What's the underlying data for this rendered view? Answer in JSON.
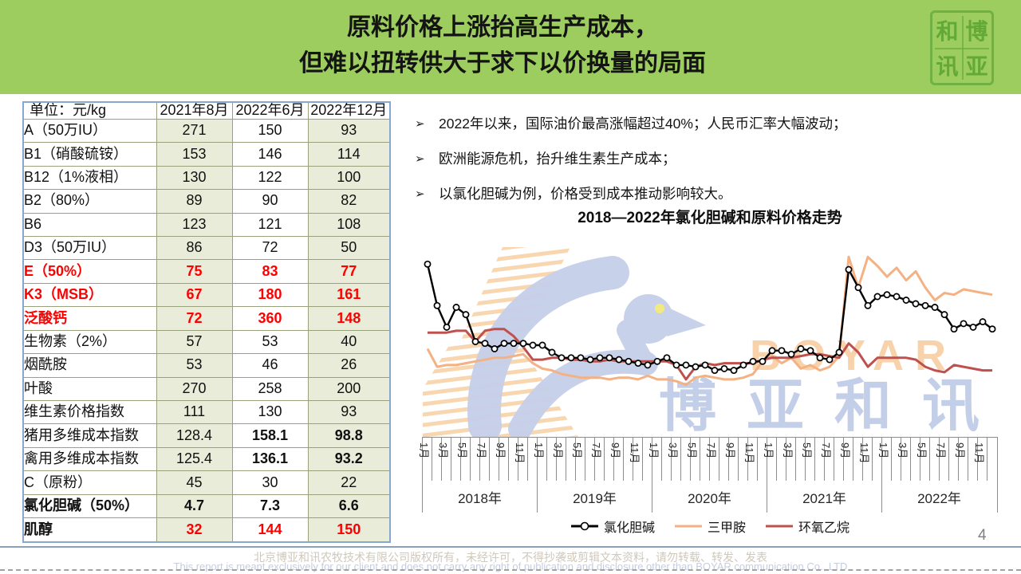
{
  "slide": {
    "title_line1": "原料价格上涨抬高生产成本，",
    "title_line2": "但难以扭转供大于求下以价换量的局面",
    "page_number": "4",
    "logo_chars": [
      "和",
      "博",
      "讯",
      "亚"
    ],
    "footer_cn": "北京博亚和讯农牧技术有限公司版权所有，未经许可，不得抄袭或剪辑文本资料，请勿转载、转发、发表",
    "footer_en": "This report is meant exclusively for our client and does not carry any right of publication and disclosure other than BOYAR communication Co., LTD"
  },
  "bullet_marker": "➢",
  "bullets": [
    "2022年以来，国际油价最高涨幅超过40%；人民币汇率大幅波动；",
    "欧洲能源危机，抬升维生素生产成本；",
    "以氯化胆碱为例，价格受到成本推动影响较大。"
  ],
  "watermark": {
    "brand_en": "BOYAR",
    "brand_cn": "博 亚 和 讯"
  },
  "table": {
    "header": [
      "单位：元/kg",
      "2021年8月",
      "2022年6月",
      "2022年12月"
    ],
    "rows": [
      {
        "label": "A（50万IU）",
        "ls": "",
        "values": [
          "271",
          "150",
          "93"
        ],
        "vs": [
          "",
          "",
          ""
        ]
      },
      {
        "label": "B1（硝酸硫铵）",
        "ls": "",
        "values": [
          "153",
          "146",
          "114"
        ],
        "vs": [
          "",
          "",
          ""
        ]
      },
      {
        "label": "B12（1%液相）",
        "ls": "",
        "values": [
          "130",
          "122",
          "100"
        ],
        "vs": [
          "",
          "",
          ""
        ]
      },
      {
        "label": "B2（80%）",
        "ls": "",
        "values": [
          "89",
          "90",
          "82"
        ],
        "vs": [
          "",
          "",
          ""
        ]
      },
      {
        "label": "B6",
        "ls": "",
        "values": [
          "123",
          "121",
          "108"
        ],
        "vs": [
          "",
          "",
          ""
        ]
      },
      {
        "label": "D3（50万IU）",
        "ls": "",
        "values": [
          "86",
          "72",
          "50"
        ],
        "vs": [
          "",
          "",
          ""
        ]
      },
      {
        "label": "E（50%）",
        "ls": "rb",
        "values": [
          "75",
          "83",
          "77"
        ],
        "vs": [
          "rb",
          "rb",
          "rb"
        ]
      },
      {
        "label": "K3（MSB）",
        "ls": "rb",
        "values": [
          "67",
          "180",
          "161"
        ],
        "vs": [
          "rb",
          "rb",
          "rb"
        ]
      },
      {
        "label": "泛酸钙",
        "ls": "rb",
        "values": [
          "72",
          "360",
          "148"
        ],
        "vs": [
          "rb",
          "rb",
          "rb"
        ]
      },
      {
        "label": "生物素（2%）",
        "ls": "",
        "values": [
          "57",
          "53",
          "40"
        ],
        "vs": [
          "",
          "",
          ""
        ]
      },
      {
        "label": "烟酰胺",
        "ls": "",
        "values": [
          "53",
          "46",
          "26"
        ],
        "vs": [
          "",
          "",
          ""
        ]
      },
      {
        "label": "叶酸",
        "ls": "",
        "values": [
          "270",
          "258",
          "200"
        ],
        "vs": [
          "",
          "",
          ""
        ]
      },
      {
        "label": "维生素价格指数",
        "ls": "",
        "values": [
          "111",
          "130",
          "93"
        ],
        "vs": [
          "",
          "",
          ""
        ]
      },
      {
        "label": "猪用多维成本指数",
        "ls": "",
        "values": [
          "128.4",
          "158.1",
          "98.8"
        ],
        "vs": [
          "",
          "b",
          "b"
        ]
      },
      {
        "label": "禽用多维成本指数",
        "ls": "",
        "values": [
          "125.4",
          "136.1",
          "93.2"
        ],
        "vs": [
          "",
          "b",
          "b"
        ]
      },
      {
        "label": "C（原粉）",
        "ls": "",
        "values": [
          "45",
          "30",
          "22"
        ],
        "vs": [
          "",
          "",
          ""
        ]
      },
      {
        "label": "氯化胆碱（50%）",
        "ls": "b",
        "values": [
          "4.7",
          "7.3",
          "6.6"
        ],
        "vs": [
          "b",
          "b",
          "b"
        ]
      },
      {
        "label": "肌醇",
        "ls": "b",
        "values": [
          "32",
          "144",
          "150"
        ],
        "vs": [
          "rb",
          "rb",
          "rb"
        ]
      }
    ]
  },
  "chart_data": {
    "type": "line",
    "title": "2018—2022年氯化胆碱和原料价格走势",
    "x_range": [
      "2018-01",
      "2022-12"
    ],
    "x_months_per_year": 12,
    "years": [
      "2018年",
      "2019年",
      "2020年",
      "2021年",
      "2022年"
    ],
    "month_tick_labels": [
      "1月",
      "3月",
      "5月",
      "7月",
      "9月",
      "11月"
    ],
    "y_axis_visible": false,
    "y_scale_note": "no y-axis shown; values are estimated relative price index (0-100) read from line heights",
    "legend_position": "bottom",
    "grid": false,
    "series": [
      {
        "name": "氯化胆碱",
        "color": "#000000",
        "marker": "circle",
        "values": [
          95,
          72,
          60,
          71,
          67,
          52,
          51,
          48,
          51,
          51,
          51,
          50,
          50,
          46,
          43,
          43,
          43,
          42,
          43,
          43,
          42,
          41,
          40,
          39,
          41,
          43,
          39,
          39,
          38,
          39,
          36,
          37,
          36,
          39,
          41,
          41,
          47,
          47,
          45,
          48,
          47,
          43,
          42,
          46,
          92,
          82,
          72,
          77,
          78,
          77,
          75,
          73,
          72,
          71,
          67,
          59,
          62,
          60,
          63,
          59
        ]
      },
      {
        "name": "三甲胺",
        "color": "#F4B183",
        "marker": "none",
        "values": [
          48,
          38,
          39,
          39,
          40,
          41,
          42,
          43,
          43,
          44,
          45,
          40,
          37,
          36,
          34,
          33,
          32,
          32,
          32,
          31,
          32,
          32,
          31,
          33,
          31,
          31,
          30,
          28,
          32,
          33,
          32,
          31,
          31,
          32,
          34,
          41,
          44,
          40,
          43,
          37,
          39,
          36,
          38,
          44,
          99,
          82,
          99,
          94,
          88,
          93,
          86,
          91,
          82,
          75,
          79,
          78,
          81,
          80,
          79,
          78
        ]
      },
      {
        "name": "环氧乙烷",
        "color": "#C0504D",
        "marker": "none",
        "values": [
          57,
          57,
          57,
          58,
          58,
          52,
          58,
          59,
          59,
          55,
          49,
          42,
          42,
          43,
          43,
          42,
          42,
          41,
          41,
          42,
          41,
          41,
          41,
          41,
          41,
          41,
          39,
          31,
          38,
          40,
          39,
          40,
          40,
          40,
          40,
          42,
          43,
          43,
          43,
          44,
          45,
          45,
          44,
          43,
          51,
          46,
          38,
          43,
          43,
          43,
          43,
          42,
          38,
          36,
          35,
          39,
          38,
          37,
          36,
          36
        ]
      }
    ]
  }
}
